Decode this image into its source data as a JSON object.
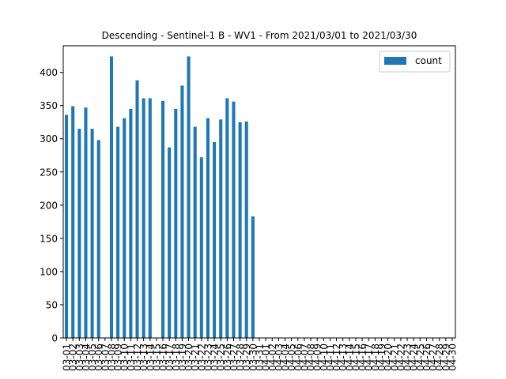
{
  "chart_data": {
    "type": "bar",
    "title": "Descending - Sentinel-1 B - WV1 - From 2021/03/01 to 2021/03/30",
    "xlabel": "",
    "ylabel": "",
    "ylim": [
      0,
      440
    ],
    "yticks": [
      0,
      50,
      100,
      150,
      200,
      250,
      300,
      350,
      400
    ],
    "grid": false,
    "legend_position": "top-right",
    "categories": [
      "03-01",
      "03-02",
      "03-03",
      "03-04",
      "03-05",
      "03-06",
      "03-07",
      "03-08",
      "03-09",
      "03-10",
      "03-11",
      "03-12",
      "03-13",
      "03-14",
      "03-15",
      "03-16",
      "03-17",
      "03-18",
      "03-19",
      "03-20",
      "03-21",
      "03-22",
      "03-23",
      "03-24",
      "03-25",
      "03-26",
      "03-27",
      "03-28",
      "03-29",
      "03-30",
      "03-31",
      "04-01",
      "04-02",
      "04-03",
      "04-04",
      "04-05",
      "04-06",
      "04-07",
      "04-08",
      "04-09",
      "04-10",
      "04-11",
      "04-12",
      "04-13",
      "04-14",
      "04-15",
      "04-16",
      "04-17",
      "04-18",
      "04-19",
      "04-20",
      "04-21",
      "04-22",
      "04-23",
      "04-24",
      "04-25",
      "04-26",
      "04-27",
      "04-28",
      "04-29",
      "04-30"
    ],
    "series": [
      {
        "name": "count",
        "color": "#1f77b4",
        "values": [
          336,
          349,
          315,
          347,
          315,
          298,
          0,
          424,
          318,
          331,
          345,
          388,
          361,
          361,
          0,
          357,
          287,
          345,
          380,
          424,
          318,
          272,
          331,
          295,
          329,
          361,
          356,
          325,
          326,
          183,
          0,
          0,
          0,
          0,
          0,
          0,
          0,
          0,
          0,
          0,
          0,
          0,
          0,
          0,
          0,
          0,
          0,
          0,
          0,
          0,
          0,
          0,
          0,
          0,
          0,
          0,
          0,
          0,
          0,
          0,
          0
        ]
      }
    ]
  }
}
